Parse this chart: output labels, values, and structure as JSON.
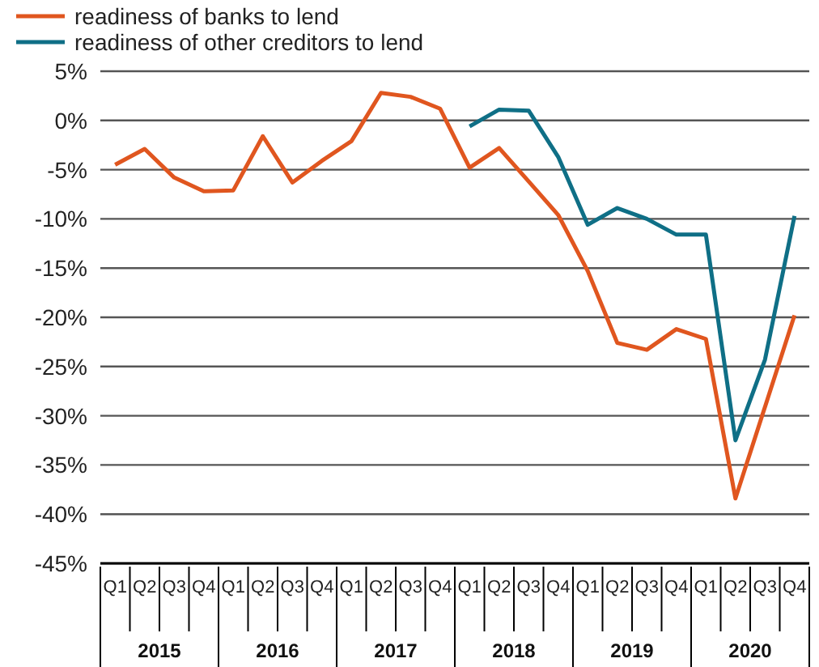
{
  "chart_data": {
    "type": "line",
    "categories": [
      "Q1",
      "Q2",
      "Q3",
      "Q4",
      "Q1",
      "Q2",
      "Q3",
      "Q4",
      "Q1",
      "Q2",
      "Q3",
      "Q4",
      "Q1",
      "Q2",
      "Q3",
      "Q4",
      "Q1",
      "Q2",
      "Q3",
      "Q4",
      "Q1",
      "Q2",
      "Q3",
      "Q4"
    ],
    "annotations": [
      "2015",
      "2016",
      "2017",
      "2018",
      "2019",
      "2020"
    ],
    "series": [
      {
        "name": "readiness of banks to lend",
        "color": "#e0561f",
        "values": [
          -4.5,
          -2.9,
          -5.8,
          -7.2,
          -7.1,
          -1.6,
          -6.3,
          -4.1,
          -2.1,
          2.8,
          2.4,
          1.2,
          -4.8,
          -2.8,
          -6.2,
          -9.6,
          -15.3,
          -22.6,
          -23.3,
          -21.2,
          -22.2,
          -38.4,
          -29.1,
          -19.8
        ]
      },
      {
        "name": "readiness of other creditors to lend",
        "color": "#0f6f86",
        "values": [
          null,
          null,
          null,
          null,
          null,
          null,
          null,
          null,
          null,
          null,
          null,
          null,
          -0.6,
          1.1,
          1.0,
          -3.7,
          -10.6,
          -8.9,
          -10.0,
          -11.6,
          -11.6,
          -32.5,
          -24.3,
          -9.7
        ]
      }
    ],
    "ylim": [
      -45,
      5
    ],
    "yticks": [
      {
        "value": 5,
        "label": "5%"
      },
      {
        "value": 0,
        "label": "0%"
      },
      {
        "value": -5,
        "label": "-5%"
      },
      {
        "value": -10,
        "label": "-10%"
      },
      {
        "value": -15,
        "label": "-15%"
      },
      {
        "value": -20,
        "label": "-20%"
      },
      {
        "value": -25,
        "label": "-25%"
      },
      {
        "value": -30,
        "label": "-30%"
      },
      {
        "value": -35,
        "label": "-35%"
      },
      {
        "value": -40,
        "label": "-40%"
      },
      {
        "value": -45,
        "label": "-45%"
      }
    ],
    "grid": "y",
    "legend": "top left",
    "marker": "none",
    "line_style": "solid"
  }
}
